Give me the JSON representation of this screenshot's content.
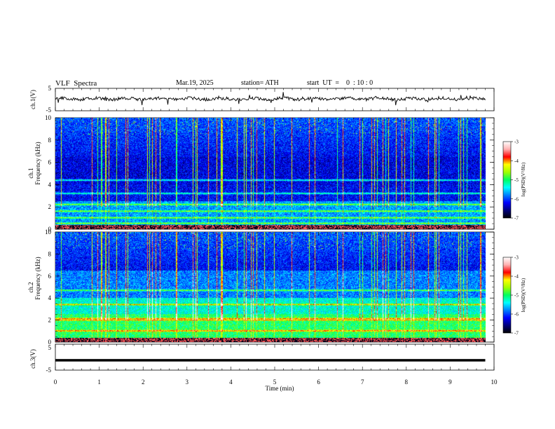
{
  "header": {
    "title": "VLF  Spectra",
    "date": "Mar.19, 2025",
    "station": "station= ATH",
    "start": "start  UT  =    0  : 10 : 0"
  },
  "colormap": {
    "stops": [
      "#000000",
      "#00007a",
      "#0000ff",
      "#0080ff",
      "#00ffff",
      "#00ff60",
      "#a0ff00",
      "#ffff00",
      "#ff0000",
      "#ffb0b0",
      "#ffffff"
    ]
  },
  "chart_data": [
    {
      "type": "line",
      "panel": "ch1-waveform",
      "ylabel": "ch.1(V)",
      "ylim": [
        -5,
        5
      ],
      "y_ticklabels": [
        "5",
        "-5"
      ],
      "baseline": 0.3,
      "xlim": [
        0,
        10
      ]
    },
    {
      "type": "heatmap",
      "panel": "ch1-spectrogram",
      "ylabel_channel": "ch.1",
      "ylabel": "Frequency  (kHz)",
      "ylim": [
        0,
        10
      ],
      "y_ticks": [
        "0",
        "2",
        "4",
        "6",
        "8",
        "10"
      ],
      "xlim": [
        0,
        9.8
      ],
      "bands_khz": [
        0.2,
        0.5,
        1.0,
        1.6,
        2.2,
        3.2,
        4.4
      ],
      "colorbar": {
        "label": "log(PSD)(V²/Hz)",
        "ticks": [
          "-3",
          "-4",
          "-5",
          "-6",
          "-7"
        ],
        "range": [
          -7,
          -3
        ]
      }
    },
    {
      "type": "heatmap",
      "panel": "ch2-spectrogram",
      "ylabel_channel": "ch.2",
      "ylabel": "Frequency  (kHz)",
      "ylim": [
        0,
        10
      ],
      "y_ticks": [
        "0",
        "2",
        "4",
        "6",
        "8",
        "10"
      ],
      "xlim": [
        0,
        9.8
      ],
      "bands_khz": [
        0.2,
        1.0,
        2.0,
        2.1,
        3.4,
        4.7
      ],
      "colorbar": {
        "label": "log(PSD)(V²/Hz)",
        "ticks": [
          "-3",
          "-4",
          "-5",
          "-6",
          "-7"
        ],
        "range": [
          -7,
          -3
        ]
      }
    },
    {
      "type": "line",
      "panel": "ch3-waveform",
      "ylabel": "ch.3(V)",
      "ylim": [
        -5,
        5
      ],
      "y_ticklabels": [
        "5",
        "-5"
      ],
      "baseline": -1.2,
      "xlim": [
        0,
        10
      ]
    }
  ],
  "xaxis": {
    "label": "Time  (min)",
    "range": [
      0,
      10
    ],
    "ticks": [
      "0",
      "1",
      "2",
      "3",
      "4",
      "5",
      "6",
      "7",
      "8",
      "9",
      "10"
    ]
  }
}
